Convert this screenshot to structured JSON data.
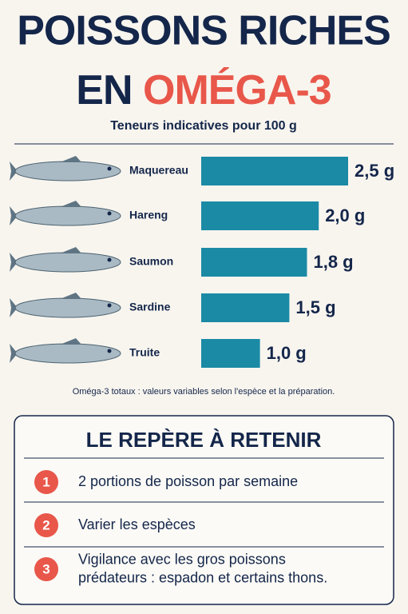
{
  "header": {
    "title_line1": "POISSONS RICHES",
    "title_line2_start": "EN",
    "title_line2_highlight": "OMÉGA-3",
    "subtitle": "Teneurs indicatives pour 100 g"
  },
  "chart_data": {
    "type": "hbar",
    "categories": [
      "Maquereau",
      "Hareng",
      "Saumon",
      "Sardine",
      "Truite"
    ],
    "values": [
      2.5,
      2.0,
      1.8,
      1.5,
      1.0
    ],
    "value_labels": [
      "2,5 g",
      "2,0 g",
      "1,8 g",
      "1,5 g",
      "1,0 g"
    ],
    "color": "#1b8aa5",
    "xlim": [
      0,
      2.5
    ]
  },
  "note": "Oméga-3 totaux : valeurs variables selon l'espèce et la préparation.",
  "box": {
    "title": "LE REPÈRE À RETENIR",
    "items": [
      {
        "number": "1",
        "lines": [
          "2 portions de poisson par semaine"
        ]
      },
      {
        "number": "2",
        "lines": [
          "Varier les espèces"
        ]
      },
      {
        "number": "3",
        "lines": [
          "Vigilance avec les gros poissons",
          "prédateurs : espadon et certains thons."
        ]
      }
    ]
  }
}
